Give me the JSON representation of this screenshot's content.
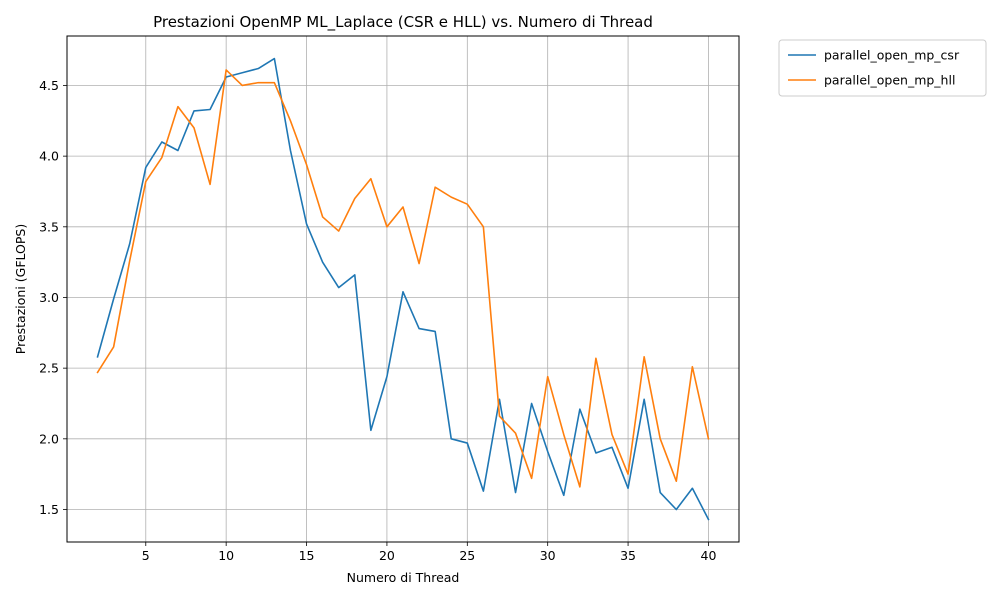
{
  "chart_data": {
    "type": "line",
    "title": "Prestazioni OpenMP ML_Laplace (CSR e HLL) vs. Numero di Thread",
    "xlabel": "Numero di Thread",
    "ylabel": "Prestazioni (GFLOPS)",
    "xlim": [
      0.1,
      41.9
    ],
    "ylim": [
      1.27,
      4.85
    ],
    "xticks": [
      5,
      10,
      15,
      20,
      25,
      30,
      35,
      40
    ],
    "yticks": [
      1.5,
      2.0,
      2.5,
      3.0,
      3.5,
      4.0,
      4.5
    ],
    "xtick_labels": [
      "5",
      "10",
      "15",
      "20",
      "25",
      "30",
      "35",
      "40"
    ],
    "ytick_labels": [
      "1.5",
      "2.0",
      "2.5",
      "3.0",
      "3.5",
      "4.0",
      "4.5"
    ],
    "grid": true,
    "legend_position": "outside upper right",
    "x": [
      2,
      3,
      4,
      5,
      6,
      7,
      8,
      9,
      10,
      11,
      12,
      13,
      14,
      15,
      16,
      17,
      18,
      19,
      20,
      21,
      22,
      23,
      24,
      25,
      26,
      27,
      28,
      29,
      30,
      31,
      32,
      33,
      34,
      35,
      36,
      37,
      38,
      39,
      40
    ],
    "series": [
      {
        "name": "parallel_open_mp_csr",
        "color": "#1f77b4",
        "values": [
          2.58,
          2.99,
          3.38,
          3.92,
          4.1,
          4.04,
          4.32,
          4.33,
          4.56,
          4.59,
          4.62,
          4.69,
          4.04,
          3.52,
          3.25,
          3.07,
          3.16,
          2.06,
          2.44,
          3.04,
          2.78,
          2.76,
          2.0,
          1.97,
          1.63,
          2.28,
          1.62,
          2.25,
          1.91,
          1.6,
          2.21,
          1.9,
          1.94,
          1.65,
          2.28,
          1.62,
          1.5,
          1.65,
          1.43
        ]
      },
      {
        "name": "parallel_open_mp_hll",
        "color": "#ff7f0e",
        "values": [
          2.47,
          2.65,
          3.26,
          3.82,
          3.99,
          4.35,
          4.2,
          3.8,
          4.61,
          4.5,
          4.52,
          4.52,
          4.25,
          3.94,
          3.57,
          3.47,
          3.7,
          3.84,
          3.5,
          3.64,
          3.24,
          3.78,
          3.71,
          3.66,
          3.5,
          2.16,
          2.04,
          1.72,
          2.44,
          2.03,
          1.66,
          2.57,
          2.03,
          1.75,
          2.58,
          2.0,
          1.7,
          2.51,
          2.0
        ]
      }
    ]
  }
}
